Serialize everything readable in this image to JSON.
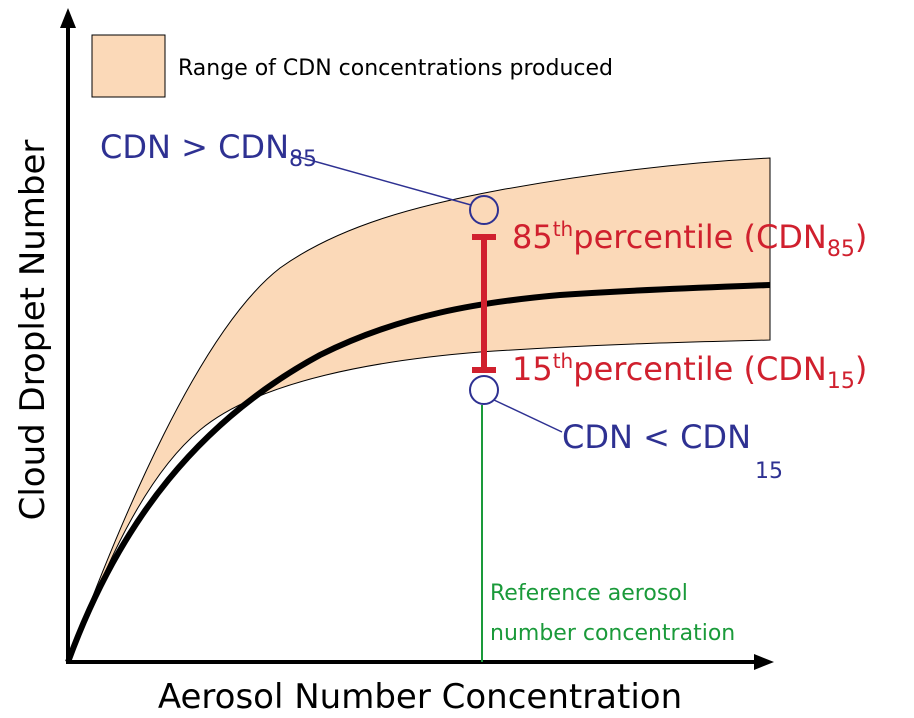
{
  "legend": {
    "label": "Range of CDN concentrations produced"
  },
  "axes": {
    "y_label": "Cloud Droplet Number",
    "x_label": "Aerosol Number Concentration"
  },
  "upper_outlier": {
    "prefix": "CDN > CDN",
    "sub": "85"
  },
  "lower_outlier": {
    "prefix": "CDN < CDN",
    "sub": "15"
  },
  "p85": {
    "number": "85",
    "sup": "th",
    "text": "percentile (CDN",
    "sub": "85",
    "close": ")"
  },
  "p15": {
    "number": "15",
    "sup": "th",
    "text": "percentile (CDN",
    "sub": "15",
    "close": ")"
  },
  "reference": {
    "line1": "Reference aerosol",
    "line2": "number concentration"
  }
}
